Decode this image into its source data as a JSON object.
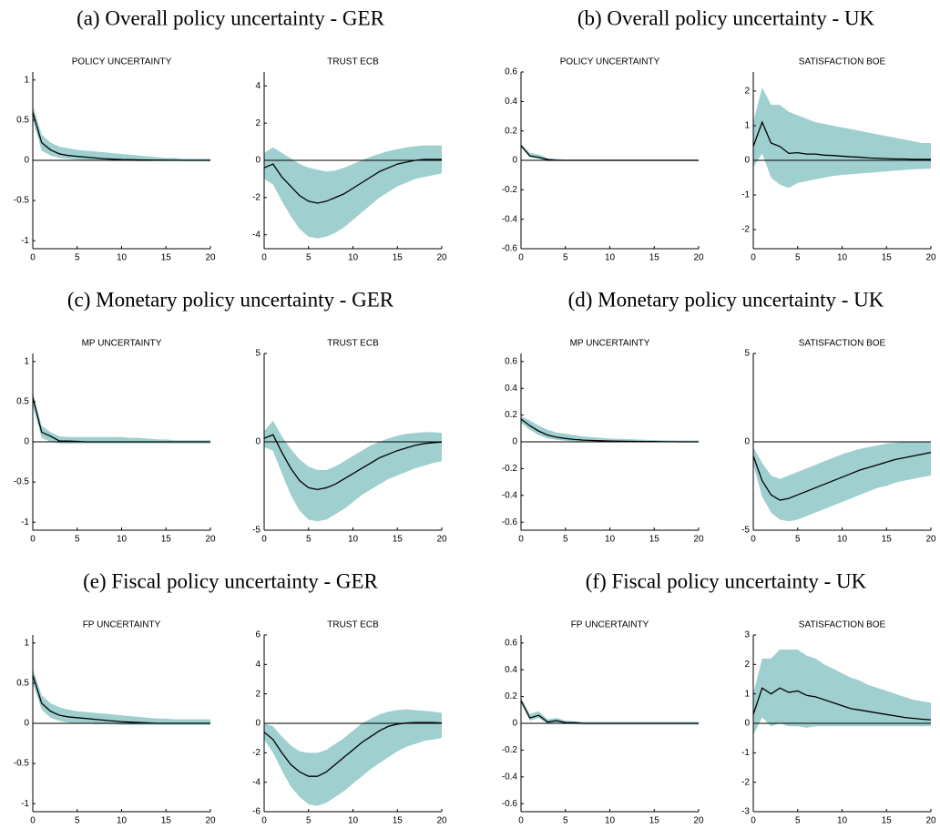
{
  "captions": [
    "(a) Overall policy uncertainty - GER",
    "(b) Overall policy uncertainty - UK",
    "(c) Monetary policy uncertainty - GER",
    "(d) Monetary policy uncertainty - UK",
    "(e) Fiscal policy uncertainty - GER",
    "(f) Fiscal policy uncertainty - UK"
  ],
  "chart_data": [
    {
      "type": "line",
      "title": "POLICY UNCERTAINTY",
      "x": [
        0,
        1,
        2,
        3,
        4,
        5,
        6,
        7,
        8,
        9,
        10,
        11,
        12,
        13,
        14,
        15,
        16,
        17,
        18,
        19,
        20
      ],
      "values": [
        0.6,
        0.22,
        0.13,
        0.08,
        0.06,
        0.05,
        0.04,
        0.03,
        0.02,
        0.015,
        0.01,
        0.008,
        0.006,
        0.004,
        0.003,
        0.002,
        0.001,
        0,
        0,
        0,
        0
      ],
      "band_lower": [
        0.5,
        0.12,
        0.06,
        0.03,
        0.02,
        0.01,
        0.005,
        0,
        0,
        0,
        0,
        -0.005,
        -0.01,
        -0.01,
        -0.01,
        -0.01,
        -0.01,
        -0.01,
        -0.01,
        -0.01,
        -0.01
      ],
      "band_upper": [
        0.68,
        0.32,
        0.22,
        0.17,
        0.15,
        0.13,
        0.12,
        0.11,
        0.1,
        0.09,
        0.08,
        0.07,
        0.06,
        0.05,
        0.04,
        0.03,
        0.03,
        0.02,
        0.02,
        0.02,
        0.02
      ],
      "color": "#000000",
      "band_color": "#9fcfcf",
      "xlim": [
        0,
        20
      ],
      "xticks": [
        0,
        5,
        10,
        15,
        20
      ],
      "ylim": [
        -1.1,
        1.1
      ],
      "yticks": [
        -1,
        -0.5,
        0,
        0.5,
        1
      ]
    },
    {
      "type": "line",
      "title": "TRUST ECB",
      "x": [
        0,
        1,
        2,
        3,
        4,
        5,
        6,
        7,
        8,
        9,
        10,
        11,
        12,
        13,
        14,
        15,
        16,
        17,
        18,
        19,
        20
      ],
      "values": [
        -0.4,
        -0.2,
        -0.9,
        -1.4,
        -1.9,
        -2.2,
        -2.3,
        -2.2,
        -2.0,
        -1.8,
        -1.5,
        -1.2,
        -0.9,
        -0.6,
        -0.4,
        -0.2,
        -0.1,
        0,
        0.05,
        0.05,
        0.05
      ],
      "band_lower": [
        -1.0,
        -1.3,
        -2.2,
        -3.0,
        -3.7,
        -4.1,
        -4.2,
        -4.1,
        -3.9,
        -3.6,
        -3.2,
        -2.8,
        -2.4,
        -2.0,
        -1.7,
        -1.4,
        -1.2,
        -1.0,
        -0.9,
        -0.8,
        -0.7
      ],
      "band_upper": [
        0.4,
        0.7,
        0.4,
        0.1,
        -0.2,
        -0.4,
        -0.5,
        -0.6,
        -0.55,
        -0.4,
        -0.2,
        0,
        0.2,
        0.35,
        0.5,
        0.6,
        0.7,
        0.75,
        0.8,
        0.8,
        0.8
      ],
      "color": "#000000",
      "band_color": "#9fcfcf",
      "xlim": [
        0,
        20
      ],
      "xticks": [
        0,
        5,
        10,
        15,
        20
      ],
      "ylim": [
        -4.75,
        4.75
      ],
      "yticks": [
        -4,
        -2,
        0,
        2,
        4
      ]
    },
    {
      "type": "line",
      "title": "POLICY UNCERTAINTY",
      "x": [
        0,
        1,
        2,
        3,
        4,
        5,
        6,
        7,
        8,
        9,
        10,
        11,
        12,
        13,
        14,
        15,
        16,
        17,
        18,
        19,
        20
      ],
      "values": [
        0.1,
        0.03,
        0.02,
        0.005,
        0,
        0,
        0,
        0,
        0,
        0,
        0,
        0,
        0,
        0,
        0,
        0,
        0,
        0,
        0,
        0,
        0
      ],
      "band_lower": [
        0.09,
        0.02,
        0.01,
        -0.005,
        -0.005,
        -0.005,
        -0.005,
        -0.005,
        -0.005,
        -0.005,
        -0.005,
        -0.005,
        -0.005,
        -0.005,
        -0.005,
        -0.005,
        -0.005,
        -0.005,
        -0.005,
        -0.005,
        -0.005
      ],
      "band_upper": [
        0.11,
        0.05,
        0.04,
        0.015,
        0.01,
        0.005,
        0.005,
        0.005,
        0.005,
        0.005,
        0.005,
        0.005,
        0.005,
        0.005,
        0.005,
        0.005,
        0.005,
        0.005,
        0.005,
        0.005,
        0.005
      ],
      "color": "#000000",
      "band_color": "#9fcfcf",
      "xlim": [
        0,
        20
      ],
      "xticks": [
        0,
        5,
        10,
        15,
        20
      ],
      "ylim": [
        -0.6,
        0.6
      ],
      "yticks": [
        -0.6,
        -0.4,
        -0.2,
        0,
        0.2,
        0.4,
        0.6
      ]
    },
    {
      "type": "line",
      "title": "SATISFACTION BOE",
      "x": [
        0,
        1,
        2,
        3,
        4,
        5,
        6,
        7,
        8,
        9,
        10,
        11,
        12,
        13,
        14,
        15,
        16,
        17,
        18,
        19,
        20
      ],
      "values": [
        0.4,
        1.1,
        0.5,
        0.4,
        0.2,
        0.22,
        0.18,
        0.18,
        0.15,
        0.14,
        0.12,
        0.1,
        0.09,
        0.07,
        0.06,
        0.05,
        0.04,
        0.04,
        0.03,
        0.03,
        0.03
      ],
      "band_lower": [
        -0.2,
        0.2,
        -0.5,
        -0.7,
        -0.8,
        -0.65,
        -0.6,
        -0.55,
        -0.5,
        -0.45,
        -0.42,
        -0.4,
        -0.38,
        -0.36,
        -0.34,
        -0.32,
        -0.3,
        -0.28,
        -0.26,
        -0.25,
        -0.24
      ],
      "band_upper": [
        1.1,
        2.1,
        1.6,
        1.6,
        1.4,
        1.3,
        1.2,
        1.1,
        1.05,
        1.0,
        0.95,
        0.9,
        0.85,
        0.8,
        0.75,
        0.7,
        0.65,
        0.6,
        0.55,
        0.5,
        0.5
      ],
      "color": "#000000",
      "band_color": "#9fcfcf",
      "xlim": [
        0,
        20
      ],
      "xticks": [
        0,
        5,
        10,
        15,
        20
      ],
      "ylim": [
        -2.55,
        2.55
      ],
      "yticks": [
        -2,
        -1,
        0,
        1,
        2
      ]
    },
    {
      "type": "line",
      "title": "MP UNCERTAINTY",
      "x": [
        0,
        1,
        2,
        3,
        4,
        5,
        6,
        7,
        8,
        9,
        10,
        11,
        12,
        13,
        14,
        15,
        16,
        17,
        18,
        19,
        20
      ],
      "values": [
        0.55,
        0.12,
        0.07,
        0.01,
        0.01,
        0.005,
        0,
        0,
        0,
        0,
        0,
        0,
        0,
        0,
        0,
        0,
        0,
        0,
        0,
        0,
        0
      ],
      "band_lower": [
        0.45,
        0.05,
        0,
        -0.02,
        -0.02,
        -0.02,
        -0.02,
        -0.02,
        -0.02,
        -0.02,
        -0.02,
        -0.02,
        -0.02,
        -0.02,
        -0.02,
        -0.02,
        -0.02,
        -0.02,
        -0.02,
        -0.02,
        -0.02
      ],
      "band_upper": [
        0.62,
        0.2,
        0.12,
        0.07,
        0.06,
        0.06,
        0.06,
        0.06,
        0.06,
        0.06,
        0.06,
        0.05,
        0.05,
        0.04,
        0.03,
        0.03,
        0.02,
        0.02,
        0.02,
        0.02,
        0.02
      ],
      "color": "#000000",
      "band_color": "#9fcfcf",
      "xlim": [
        0,
        20
      ],
      "xticks": [
        0,
        5,
        10,
        15,
        20
      ],
      "ylim": [
        -1.1,
        1.1
      ],
      "yticks": [
        -1,
        -0.5,
        0,
        0.5,
        1
      ]
    },
    {
      "type": "line",
      "title": "TRUST ECB",
      "x": [
        0,
        1,
        2,
        3,
        4,
        5,
        6,
        7,
        8,
        9,
        10,
        11,
        12,
        13,
        14,
        15,
        16,
        17,
        18,
        19,
        20
      ],
      "values": [
        0.2,
        0.4,
        -0.6,
        -1.5,
        -2.2,
        -2.6,
        -2.7,
        -2.6,
        -2.4,
        -2.1,
        -1.8,
        -1.5,
        -1.2,
        -0.9,
        -0.7,
        -0.5,
        -0.35,
        -0.2,
        -0.1,
        -0.05,
        -0.02
      ],
      "band_lower": [
        -0.3,
        -0.5,
        -1.8,
        -3.0,
        -3.9,
        -4.4,
        -4.5,
        -4.4,
        -4.1,
        -3.8,
        -3.4,
        -3.0,
        -2.7,
        -2.4,
        -2.1,
        -1.9,
        -1.7,
        -1.5,
        -1.35,
        -1.2,
        -1.1
      ],
      "band_upper": [
        0.6,
        1.2,
        0.3,
        -0.4,
        -1.0,
        -1.4,
        -1.6,
        -1.6,
        -1.4,
        -1.1,
        -0.8,
        -0.5,
        -0.2,
        0,
        0.2,
        0.35,
        0.45,
        0.5,
        0.55,
        0.55,
        0.5
      ],
      "color": "#000000",
      "band_color": "#9fcfcf",
      "xlim": [
        0,
        20
      ],
      "xticks": [
        0,
        5,
        10,
        15,
        20
      ],
      "ylim": [
        -5,
        5
      ],
      "yticks": [
        -5,
        0,
        5
      ]
    },
    {
      "type": "line",
      "title": "MP UNCERTAINTY",
      "x": [
        0,
        1,
        2,
        3,
        4,
        5,
        6,
        7,
        8,
        9,
        10,
        11,
        12,
        13,
        14,
        15,
        16,
        17,
        18,
        19,
        20
      ],
      "values": [
        0.17,
        0.12,
        0.08,
        0.05,
        0.035,
        0.025,
        0.018,
        0.013,
        0.01,
        0.008,
        0.006,
        0.005,
        0.004,
        0.003,
        0.002,
        0.002,
        0.001,
        0.001,
        0,
        0,
        0
      ],
      "band_lower": [
        0.14,
        0.09,
        0.05,
        0.025,
        0.015,
        0.008,
        0.004,
        0.002,
        0,
        0,
        0,
        0,
        0,
        0,
        0,
        0,
        0,
        0,
        0,
        0,
        0
      ],
      "band_upper": [
        0.19,
        0.16,
        0.12,
        0.09,
        0.07,
        0.06,
        0.05,
        0.04,
        0.035,
        0.03,
        0.025,
        0.022,
        0.02,
        0.018,
        0.015,
        0.013,
        0.012,
        0.01,
        0.01,
        0.01,
        0.01
      ],
      "color": "#000000",
      "band_color": "#9fcfcf",
      "xlim": [
        0,
        20
      ],
      "xticks": [
        0,
        5,
        10,
        15,
        20
      ],
      "ylim": [
        -0.66,
        0.66
      ],
      "yticks": [
        -0.6,
        -0.4,
        -0.2,
        0,
        0.2,
        0.4,
        0.6
      ]
    },
    {
      "type": "line",
      "title": "SATISFACTION BOE",
      "x": [
        0,
        1,
        2,
        3,
        4,
        5,
        6,
        7,
        8,
        9,
        10,
        11,
        12,
        13,
        14,
        15,
        16,
        17,
        18,
        19,
        20
      ],
      "values": [
        -0.8,
        -2.2,
        -3.0,
        -3.3,
        -3.2,
        -3.0,
        -2.8,
        -2.6,
        -2.4,
        -2.2,
        -2.0,
        -1.8,
        -1.6,
        -1.45,
        -1.3,
        -1.15,
        -1.0,
        -0.9,
        -0.8,
        -0.7,
        -0.6
      ],
      "band_lower": [
        -1.3,
        -3.1,
        -4.0,
        -4.4,
        -4.5,
        -4.4,
        -4.2,
        -4.0,
        -3.8,
        -3.6,
        -3.4,
        -3.2,
        -3.0,
        -2.8,
        -2.6,
        -2.5,
        -2.3,
        -2.2,
        -2.1,
        -2.0,
        -1.9
      ],
      "band_upper": [
        -0.3,
        -1.2,
        -1.9,
        -2.1,
        -1.9,
        -1.7,
        -1.5,
        -1.3,
        -1.1,
        -0.9,
        -0.7,
        -0.55,
        -0.4,
        -0.3,
        -0.2,
        -0.1,
        -0.05,
        0,
        0,
        0,
        0
      ],
      "color": "#000000",
      "band_color": "#9fcfcf",
      "xlim": [
        0,
        20
      ],
      "xticks": [
        0,
        5,
        10,
        15,
        20
      ],
      "ylim": [
        -5,
        5
      ],
      "yticks": [
        -5,
        0,
        5
      ]
    },
    {
      "type": "line",
      "title": "FP UNCERTAINTY",
      "x": [
        0,
        1,
        2,
        3,
        4,
        5,
        6,
        7,
        8,
        9,
        10,
        11,
        12,
        13,
        14,
        15,
        16,
        17,
        18,
        19,
        20
      ],
      "values": [
        0.6,
        0.25,
        0.15,
        0.1,
        0.08,
        0.07,
        0.06,
        0.05,
        0.04,
        0.03,
        0.02,
        0.015,
        0.01,
        0.005,
        0,
        0,
        0,
        0,
        0,
        0,
        0
      ],
      "band_lower": [
        0.5,
        0.17,
        0.07,
        0.03,
        0.01,
        0,
        0,
        -0.01,
        -0.01,
        -0.01,
        -0.02,
        -0.02,
        -0.02,
        -0.02,
        -0.02,
        -0.02,
        -0.02,
        -0.02,
        -0.02,
        -0.02,
        -0.02
      ],
      "band_upper": [
        0.68,
        0.35,
        0.25,
        0.2,
        0.17,
        0.15,
        0.14,
        0.13,
        0.12,
        0.11,
        0.1,
        0.09,
        0.08,
        0.07,
        0.06,
        0.06,
        0.05,
        0.05,
        0.05,
        0.05,
        0.05
      ],
      "color": "#000000",
      "band_color": "#9fcfcf",
      "xlim": [
        0,
        20
      ],
      "xticks": [
        0,
        5,
        10,
        15,
        20
      ],
      "ylim": [
        -1.1,
        1.1
      ],
      "yticks": [
        -1,
        -0.5,
        0,
        0.5,
        1
      ]
    },
    {
      "type": "line",
      "title": "TRUST ECB",
      "x": [
        0,
        1,
        2,
        3,
        4,
        5,
        6,
        7,
        8,
        9,
        10,
        11,
        12,
        13,
        14,
        15,
        16,
        17,
        18,
        19,
        20
      ],
      "values": [
        -0.6,
        -1.1,
        -2.0,
        -2.8,
        -3.3,
        -3.6,
        -3.6,
        -3.3,
        -2.8,
        -2.3,
        -1.8,
        -1.3,
        -0.9,
        -0.5,
        -0.2,
        -0.05,
        0.02,
        0.05,
        0.05,
        0.05,
        0.02
      ],
      "band_lower": [
        -1.1,
        -2.0,
        -3.2,
        -4.3,
        -5.0,
        -5.5,
        -5.6,
        -5.4,
        -5.0,
        -4.6,
        -4.1,
        -3.6,
        -3.1,
        -2.7,
        -2.3,
        -1.9,
        -1.6,
        -1.4,
        -1.2,
        -1.1,
        -1.0
      ],
      "band_upper": [
        0,
        -0.2,
        -0.9,
        -1.5,
        -1.9,
        -2.0,
        -2.0,
        -1.8,
        -1.4,
        -1.0,
        -0.5,
        0,
        0.3,
        0.6,
        0.8,
        0.9,
        0.95,
        0.9,
        0.85,
        0.8,
        0.7
      ],
      "color": "#000000",
      "band_color": "#9fcfcf",
      "xlim": [
        0,
        20
      ],
      "xticks": [
        0,
        5,
        10,
        15,
        20
      ],
      "ylim": [
        -6,
        6
      ],
      "yticks": [
        -6,
        -4,
        -2,
        0,
        2,
        4,
        6
      ]
    },
    {
      "type": "line",
      "title": "FP UNCERTAINTY",
      "x": [
        0,
        1,
        2,
        3,
        4,
        5,
        6,
        7,
        8,
        9,
        10,
        11,
        12,
        13,
        14,
        15,
        16,
        17,
        18,
        19,
        20
      ],
      "values": [
        0.17,
        0.04,
        0.06,
        0.01,
        0.02,
        0.005,
        0.005,
        0,
        0,
        0,
        0,
        0,
        0,
        0,
        0,
        0,
        0,
        0,
        0,
        0,
        0
      ],
      "band_lower": [
        0.15,
        0.02,
        0.04,
        -0.005,
        0,
        -0.005,
        -0.005,
        -0.01,
        -0.01,
        -0.01,
        -0.01,
        -0.01,
        -0.01,
        -0.01,
        -0.01,
        -0.01,
        -0.01,
        -0.01,
        -0.01,
        -0.01,
        -0.01
      ],
      "band_upper": [
        0.19,
        0.07,
        0.09,
        0.03,
        0.04,
        0.02,
        0.015,
        0.01,
        0.01,
        0.01,
        0.01,
        0.01,
        0.01,
        0.01,
        0.01,
        0.01,
        0.01,
        0.01,
        0.01,
        0.01,
        0.01
      ],
      "color": "#000000",
      "band_color": "#9fcfcf",
      "xlim": [
        0,
        20
      ],
      "xticks": [
        0,
        5,
        10,
        15,
        20
      ],
      "ylim": [
        -0.66,
        0.66
      ],
      "yticks": [
        -0.6,
        -0.4,
        -0.2,
        0,
        0.2,
        0.4,
        0.6
      ]
    },
    {
      "type": "line",
      "title": "SATISFACTION BOE",
      "x": [
        0,
        1,
        2,
        3,
        4,
        5,
        6,
        7,
        8,
        9,
        10,
        11,
        12,
        13,
        14,
        15,
        16,
        17,
        18,
        19,
        20
      ],
      "values": [
        0.3,
        1.2,
        1.0,
        1.2,
        1.05,
        1.1,
        0.95,
        0.9,
        0.8,
        0.7,
        0.6,
        0.5,
        0.45,
        0.4,
        0.35,
        0.3,
        0.25,
        0.2,
        0.17,
        0.14,
        0.12
      ],
      "band_lower": [
        -0.4,
        0.2,
        -0.1,
        0,
        -0.1,
        -0.1,
        -0.15,
        -0.1,
        -0.1,
        -0.1,
        -0.1,
        -0.1,
        -0.1,
        -0.1,
        -0.1,
        -0.1,
        -0.1,
        -0.1,
        -0.1,
        -0.1,
        -0.1
      ],
      "band_upper": [
        1.0,
        2.2,
        2.2,
        2.5,
        2.5,
        2.5,
        2.3,
        2.2,
        2.0,
        1.85,
        1.7,
        1.55,
        1.45,
        1.3,
        1.2,
        1.1,
        1.0,
        0.9,
        0.8,
        0.75,
        0.7
      ],
      "color": "#000000",
      "band_color": "#9fcfcf",
      "xlim": [
        0,
        20
      ],
      "xticks": [
        0,
        5,
        10,
        15,
        20
      ],
      "ylim": [
        -3,
        3
      ],
      "yticks": [
        -3,
        -2,
        -1,
        0,
        1,
        2,
        3
      ]
    }
  ]
}
